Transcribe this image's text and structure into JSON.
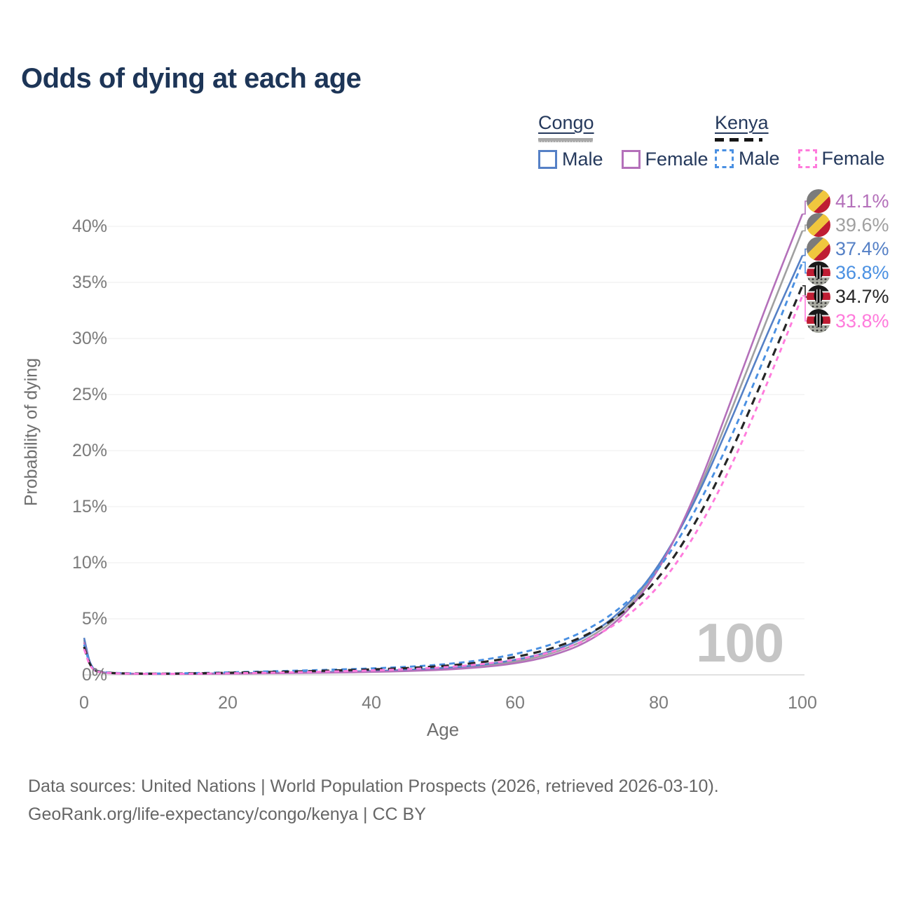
{
  "title": "Odds of dying at each age",
  "watermark": "100",
  "legend": {
    "groups": [
      {
        "name": "Congo",
        "style": "solid-underline-gray",
        "items": [
          {
            "label": "Male",
            "color": "#5580c6"
          },
          {
            "label": "Female",
            "color": "#b470ba"
          }
        ]
      },
      {
        "name": "Kenya",
        "style": "dashed-underline-black",
        "items": [
          {
            "label": "Male",
            "color": "#4a90e2"
          },
          {
            "label": "Female",
            "color": "#ff7bdc"
          }
        ]
      }
    ]
  },
  "footer": {
    "line1": "Data sources: United Nations | World Population Prospects (2026, retrieved 2026-03-10).",
    "line2": "GeoRank.org/life-expectancy/congo/kenya | CC BY"
  },
  "chart_data": {
    "type": "line",
    "title": "Odds of dying at each age",
    "xlabel": "Age",
    "ylabel": "Probability of dying",
    "xlim": [
      0,
      100
    ],
    "ylim_percent": [
      0,
      42
    ],
    "grid": "horizontal",
    "legend_position": "top-right",
    "xticks": [
      {
        "value": 0,
        "label": "0"
      },
      {
        "value": 20,
        "label": "20"
      },
      {
        "value": 40,
        "label": "40"
      },
      {
        "value": 60,
        "label": "60"
      },
      {
        "value": 80,
        "label": "80"
      },
      {
        "value": 100,
        "label": "100"
      }
    ],
    "yticks": [
      {
        "value": 0,
        "label": "0%"
      },
      {
        "value": 5,
        "label": "5%"
      },
      {
        "value": 10,
        "label": "10%"
      },
      {
        "value": 15,
        "label": "15%"
      },
      {
        "value": 20,
        "label": "20%"
      },
      {
        "value": 25,
        "label": "25%"
      },
      {
        "value": 30,
        "label": "30%"
      },
      {
        "value": 35,
        "label": "35%"
      },
      {
        "value": 40,
        "label": "40%"
      }
    ],
    "x": [
      0,
      1,
      3,
      5,
      10,
      15,
      20,
      25,
      30,
      35,
      40,
      45,
      50,
      55,
      60,
      65,
      70,
      75,
      80,
      85,
      90,
      95,
      100
    ],
    "series": [
      {
        "name": "Congo Both sexes",
        "country": "Congo",
        "sex": "both",
        "style": "solid",
        "color": "#a0a0a0",
        "dash": "",
        "width": 2.6,
        "flag": "congo",
        "end_label": "39.6%",
        "end_value": 39.6,
        "values_percent": [
          3.1,
          0.37,
          0.17,
          0.11,
          0.075,
          0.09,
          0.12,
          0.155,
          0.19,
          0.235,
          0.295,
          0.385,
          0.52,
          0.75,
          1.15,
          1.85,
          3.1,
          5.4,
          9.4,
          15.5,
          23.4,
          31.6,
          39.6
        ]
      },
      {
        "name": "Congo Male",
        "country": "Congo",
        "sex": "male",
        "style": "solid",
        "color": "#5580c6",
        "dash": "",
        "width": 2.6,
        "flag": "congo",
        "end_label": "37.4%",
        "end_value": 37.4,
        "values_percent": [
          3.3,
          0.4,
          0.18,
          0.12,
          0.08,
          0.1,
          0.14,
          0.18,
          0.22,
          0.27,
          0.34,
          0.44,
          0.6,
          0.85,
          1.3,
          2.05,
          3.35,
          5.7,
          9.6,
          15.3,
          22.6,
          30.3,
          37.4
        ]
      },
      {
        "name": "Congo Female",
        "country": "Congo",
        "sex": "female",
        "style": "solid",
        "color": "#b470ba",
        "dash": "",
        "width": 2.6,
        "flag": "congo",
        "end_label": "41.1%",
        "end_value": 41.1,
        "values_percent": [
          2.9,
          0.34,
          0.15,
          0.1,
          0.07,
          0.08,
          0.1,
          0.13,
          0.16,
          0.2,
          0.25,
          0.33,
          0.45,
          0.65,
          1.0,
          1.65,
          2.85,
          5.1,
          9.2,
          15.8,
          24.3,
          33.0,
          41.1
        ]
      },
      {
        "name": "Kenya Male",
        "country": "Kenya",
        "sex": "male",
        "style": "dashed",
        "color": "#4a90e2",
        "dash": "8 6",
        "width": 2.9,
        "flag": "kenya",
        "end_label": "36.8%",
        "end_value": 36.8,
        "values_percent": [
          2.7,
          0.45,
          0.22,
          0.15,
          0.11,
          0.15,
          0.22,
          0.3,
          0.38,
          0.47,
          0.57,
          0.71,
          0.92,
          1.27,
          1.82,
          2.65,
          3.95,
          6.05,
          9.3,
          14.4,
          21.0,
          28.7,
          36.8
        ]
      },
      {
        "name": "Kenya Both sexes",
        "country": "Kenya",
        "sex": "both",
        "style": "dashed",
        "color": "#262626",
        "dash": "11 8",
        "width": 3.2,
        "flag": "kenya",
        "end_label": "34.7%",
        "end_value": 34.7,
        "values_percent": [
          2.5,
          0.42,
          0.2,
          0.13,
          0.095,
          0.125,
          0.18,
          0.24,
          0.31,
          0.39,
          0.48,
          0.6,
          0.78,
          1.08,
          1.56,
          2.3,
          3.5,
          5.45,
          8.5,
          13.3,
          19.7,
          27.1,
          34.7
        ]
      },
      {
        "name": "Kenya Female",
        "country": "Kenya",
        "sex": "female",
        "style": "dashed",
        "color": "#ff7bdc",
        "dash": "7 6",
        "width": 2.9,
        "flag": "kenya",
        "end_label": "33.8%",
        "end_value": 33.8,
        "values_percent": [
          2.3,
          0.38,
          0.18,
          0.12,
          0.08,
          0.1,
          0.14,
          0.18,
          0.24,
          0.31,
          0.39,
          0.5,
          0.66,
          0.92,
          1.32,
          1.98,
          3.05,
          4.85,
          7.75,
          12.3,
          18.4,
          25.8,
          33.8
        ]
      }
    ],
    "end_labels": [
      {
        "text": "41.1%",
        "series": "Congo Female"
      },
      {
        "text": "39.6%",
        "series": "Congo Both sexes"
      },
      {
        "text": "37.4%",
        "series": "Congo Male"
      },
      {
        "text": "36.8%",
        "series": "Kenya Male"
      },
      {
        "text": "34.7%",
        "series": "Kenya Both sexes"
      },
      {
        "text": "33.8%",
        "series": "Kenya Female"
      }
    ]
  }
}
